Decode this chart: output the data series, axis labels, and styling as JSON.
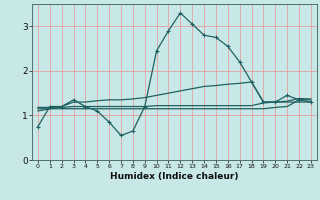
{
  "xlabel": "Humidex (Indice chaleur)",
  "bg_color": "#c8e8e8",
  "grid_color": "#e8a0a0",
  "line_color": "#206060",
  "xlim": [
    -0.5,
    23.5
  ],
  "ylim": [
    0,
    3.5
  ],
  "xticks": [
    0,
    1,
    2,
    3,
    4,
    5,
    6,
    7,
    8,
    9,
    10,
    11,
    12,
    13,
    14,
    15,
    16,
    17,
    18,
    19,
    20,
    21,
    22,
    23
  ],
  "yticks": [
    0,
    1,
    2,
    3
  ],
  "line1_x": [
    0,
    1,
    2,
    3,
    4,
    5,
    6,
    7,
    8,
    9,
    10,
    11,
    12,
    13,
    14,
    15,
    16,
    17,
    18,
    19,
    20,
    21,
    22,
    23
  ],
  "line1_y": [
    0.75,
    1.2,
    1.2,
    1.35,
    1.2,
    1.1,
    0.85,
    0.55,
    0.65,
    1.2,
    2.45,
    2.9,
    3.3,
    3.05,
    2.8,
    2.75,
    2.55,
    2.2,
    1.75,
    1.3,
    1.3,
    1.45,
    1.35,
    1.3
  ],
  "line2_x": [
    0,
    1,
    2,
    3,
    4,
    5,
    6,
    7,
    8,
    9,
    10,
    11,
    12,
    13,
    14,
    15,
    16,
    17,
    18,
    19,
    20,
    21,
    22,
    23
  ],
  "line2_y": [
    1.1,
    1.15,
    1.2,
    1.3,
    1.3,
    1.33,
    1.35,
    1.35,
    1.37,
    1.4,
    1.45,
    1.5,
    1.55,
    1.6,
    1.65,
    1.67,
    1.7,
    1.72,
    1.75,
    1.3,
    1.3,
    1.32,
    1.38,
    1.37
  ],
  "line3_x": [
    0,
    1,
    2,
    3,
    4,
    5,
    6,
    7,
    8,
    9,
    10,
    11,
    12,
    13,
    14,
    15,
    16,
    17,
    18,
    19,
    20,
    21,
    22,
    23
  ],
  "line3_y": [
    1.18,
    1.18,
    1.18,
    1.2,
    1.2,
    1.2,
    1.2,
    1.2,
    1.2,
    1.2,
    1.22,
    1.22,
    1.22,
    1.22,
    1.22,
    1.22,
    1.22,
    1.22,
    1.22,
    1.28,
    1.3,
    1.3,
    1.3,
    1.3
  ],
  "line4_x": [
    0,
    1,
    2,
    3,
    4,
    5,
    6,
    7,
    8,
    9,
    10,
    11,
    12,
    13,
    14,
    15,
    16,
    17,
    18,
    19,
    20,
    21,
    22,
    23
  ],
  "line4_y": [
    1.15,
    1.15,
    1.15,
    1.15,
    1.15,
    1.15,
    1.15,
    1.15,
    1.15,
    1.15,
    1.15,
    1.15,
    1.15,
    1.15,
    1.15,
    1.15,
    1.15,
    1.15,
    1.15,
    1.15,
    1.18,
    1.2,
    1.35,
    1.35
  ]
}
